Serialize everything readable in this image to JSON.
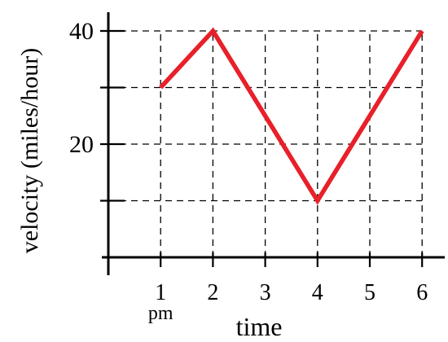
{
  "chart_data": {
    "type": "line",
    "title": "",
    "xlabel": "time",
    "ylabel": "velocity (miles/hour)",
    "x": [
      1,
      2,
      3,
      4,
      5,
      6
    ],
    "xlim": [
      0,
      6.5
    ],
    "ylim": [
      0,
      40
    ],
    "grid": true,
    "grid_style": "dashed",
    "x_ticks": [
      1,
      2,
      3,
      4,
      5,
      6
    ],
    "x_tick_labels": [
      "1",
      "2",
      "3",
      "4",
      "5",
      "6"
    ],
    "x_tick_sublabel": "pm",
    "y_ticks": [
      10,
      20,
      30,
      40
    ],
    "y_tick_labels": [
      "",
      "20",
      "",
      "40"
    ],
    "series": [
      {
        "values": [
          30,
          40,
          25,
          10,
          25,
          40
        ],
        "color": "#e8202a"
      }
    ]
  }
}
